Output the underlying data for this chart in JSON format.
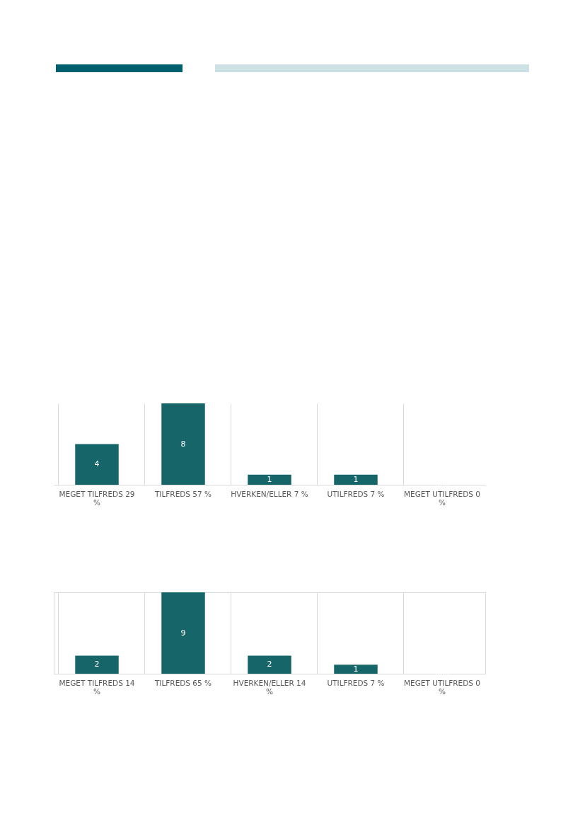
{
  "chart_data": [
    {
      "type": "bar",
      "categories": [
        "MEGET TILFREDS 29 %",
        "TILFREDS 57 %",
        "HVERKEN/ELLER 7 %",
        "UTILFREDS 7 %",
        "MEGET UTILFREDS 0 %"
      ],
      "values": [
        4,
        8,
        1,
        1,
        0
      ],
      "value_labels": [
        "4",
        "8",
        "1",
        "1",
        null
      ],
      "color": "#156569",
      "grid": "x"
    },
    {
      "type": "bar",
      "categories": [
        "MEGET TILFREDS 14 %",
        "TILFREDS 65 %",
        "HVERKEN/ELLER 14 %",
        "UTILFREDS 7 %",
        "MEGET UTILFREDS 0 %"
      ],
      "values": [
        2,
        9,
        2,
        1,
        0
      ],
      "value_labels": [
        "2",
        "9",
        "2",
        "1",
        null
      ],
      "color": "#156569",
      "grid": "x"
    }
  ]
}
